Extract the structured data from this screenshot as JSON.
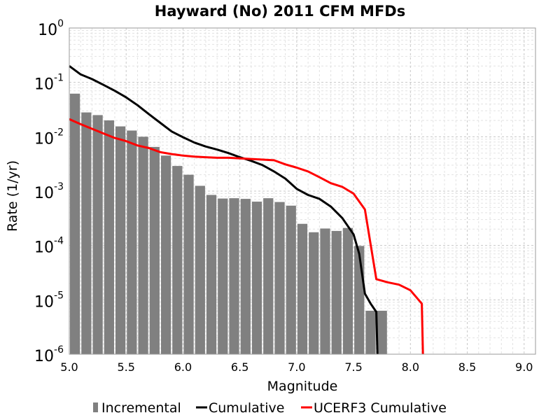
{
  "chart_data": {
    "type": "bar",
    "title": "Hayward (No) 2011 CFM MFDs",
    "xlabel": "Magnitude",
    "ylabel": "Rate (1/yr)",
    "xlim": [
      5.0,
      9.1
    ],
    "ylim": [
      1e-06,
      1
    ],
    "yscale": "log",
    "grid": true,
    "legend_position": "bottom",
    "x_ticks": [
      "5.0",
      "5.5",
      "6.0",
      "6.5",
      "7.0",
      "7.5",
      "8.0",
      "8.5",
      "9.0"
    ],
    "y_ticks": [
      {
        "base": "10",
        "exp": "0"
      },
      {
        "base": "10",
        "exp": "-1"
      },
      {
        "base": "10",
        "exp": "-2"
      },
      {
        "base": "10",
        "exp": "-3"
      },
      {
        "base": "10",
        "exp": "-4"
      },
      {
        "base": "10",
        "exp": "-5"
      },
      {
        "base": "10",
        "exp": "-6"
      }
    ],
    "bar_width": 0.1,
    "series": [
      {
        "name": "Incremental",
        "kind": "bar",
        "color": "#808080",
        "x": [
          5.05,
          5.15,
          5.25,
          5.35,
          5.45,
          5.55,
          5.65,
          5.75,
          5.85,
          5.95,
          6.05,
          6.15,
          6.25,
          6.35,
          6.45,
          6.55,
          6.65,
          6.75,
          6.85,
          6.95,
          7.05,
          7.15,
          7.25,
          7.35,
          7.45,
          7.55,
          7.65,
          7.75
        ],
        "y": [
          0.062,
          0.028,
          0.025,
          0.02,
          0.0155,
          0.013,
          0.01,
          0.0065,
          0.0045,
          0.0029,
          0.002,
          0.00125,
          0.00085,
          0.00073,
          0.00074,
          0.00072,
          0.00064,
          0.00074,
          0.00063,
          0.00054,
          0.00025,
          0.000175,
          0.000205,
          0.000185,
          0.00021,
          9.8e-05,
          6.3e-06,
          6.3e-06
        ]
      },
      {
        "name": "Cumulative",
        "kind": "line",
        "color": "#000000",
        "x": [
          5.0,
          5.1,
          5.2,
          5.3,
          5.4,
          5.5,
          5.6,
          5.7,
          5.8,
          5.9,
          6.0,
          6.1,
          6.2,
          6.3,
          6.4,
          6.5,
          6.6,
          6.7,
          6.8,
          6.9,
          7.0,
          7.1,
          7.2,
          7.3,
          7.4,
          7.5,
          7.55,
          7.6,
          7.65,
          7.7,
          7.71
        ],
        "y": [
          0.2,
          0.14,
          0.115,
          0.09,
          0.07,
          0.053,
          0.038,
          0.026,
          0.018,
          0.0125,
          0.0098,
          0.0078,
          0.0066,
          0.0058,
          0.005,
          0.0042,
          0.0036,
          0.003,
          0.0023,
          0.0017,
          0.0011,
          0.00085,
          0.00072,
          0.00052,
          0.00032,
          0.00016,
          7e-05,
          1.3e-05,
          8.5e-06,
          6e-06,
          1e-06
        ]
      },
      {
        "name": "UCERF3 Cumulative",
        "kind": "line",
        "color": "#ff0000",
        "x": [
          5.0,
          5.1,
          5.2,
          5.3,
          5.4,
          5.5,
          5.6,
          5.7,
          5.8,
          5.9,
          6.0,
          6.1,
          6.2,
          6.3,
          6.4,
          6.5,
          6.6,
          6.7,
          6.8,
          6.9,
          7.0,
          7.1,
          7.2,
          7.3,
          7.4,
          7.5,
          7.6,
          7.7,
          7.8,
          7.9,
          8.0,
          8.1,
          8.11
        ],
        "y": [
          0.021,
          0.017,
          0.014,
          0.0115,
          0.0095,
          0.0083,
          0.0069,
          0.0062,
          0.0052,
          0.0048,
          0.0045,
          0.0043,
          0.0042,
          0.0041,
          0.0041,
          0.004,
          0.0039,
          0.0038,
          0.0037,
          0.0031,
          0.0027,
          0.0023,
          0.0018,
          0.0014,
          0.0012,
          0.0009,
          0.00046,
          2.4e-05,
          2.1e-05,
          1.9e-05,
          1.5e-05,
          8.5e-06,
          1e-06
        ]
      }
    ]
  }
}
